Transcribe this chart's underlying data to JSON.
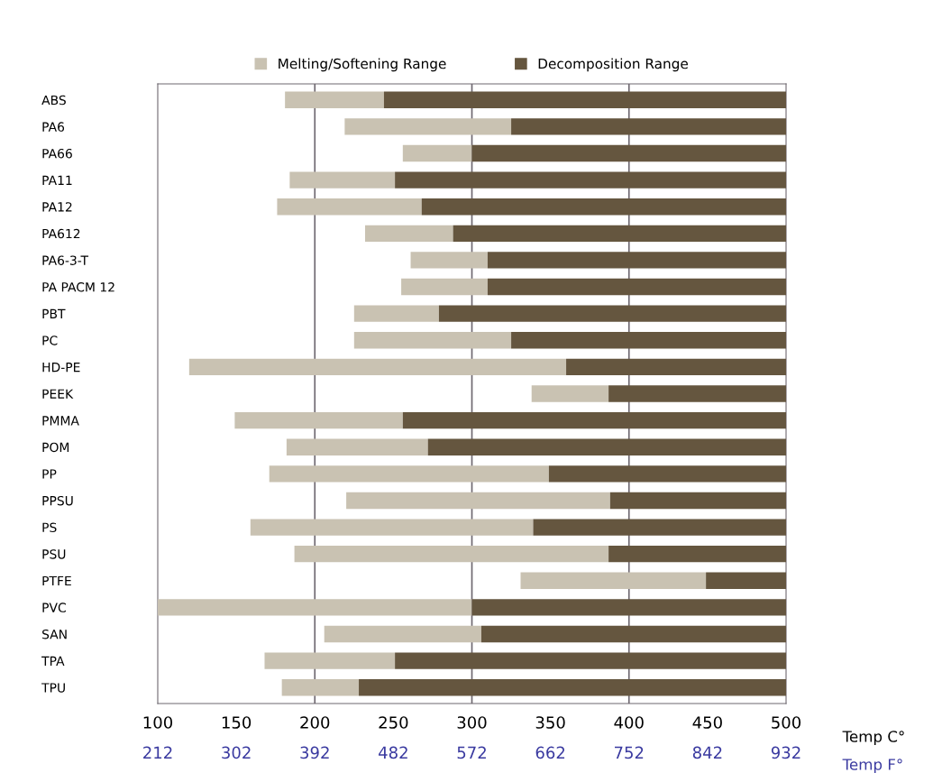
{
  "chart_data": {
    "type": "bar",
    "orientation": "horizontal",
    "categories": [
      "ABS",
      "PA6",
      "PA66",
      "PA11",
      "PA12",
      "PA612",
      "PA6-3-T",
      "PA PACM 12",
      "PBT",
      "PC",
      "HD-PE",
      "PEEK",
      "PMMA",
      "POM",
      "PP",
      "PPSU",
      "PS",
      "PSU",
      "PTFE",
      "PVC",
      "SAN",
      "TPA",
      "TPU"
    ],
    "series": [
      {
        "name": "Melting/Softening Range",
        "color": "#c9c2b2",
        "base": [
          181,
          219,
          256,
          184,
          176,
          232,
          261,
          255,
          225,
          225,
          120,
          338,
          149,
          182,
          171,
          220,
          159,
          187,
          331,
          100,
          206,
          168,
          179
        ],
        "values": [
          63,
          106,
          44,
          67,
          92,
          56,
          49,
          55,
          54,
          100,
          240,
          49,
          107,
          90,
          178,
          168,
          180,
          200,
          118,
          200,
          100,
          83,
          49
        ]
      },
      {
        "name": "Decomposition Range",
        "color": "#65563f",
        "base": [
          244,
          325,
          300,
          251,
          268,
          288,
          310,
          310,
          279,
          325,
          360,
          387,
          256,
          272,
          349,
          388,
          339,
          387,
          449,
          300,
          306,
          251,
          228
        ],
        "values": [
          256,
          175,
          200,
          249,
          232,
          212,
          190,
          190,
          221,
          175,
          140,
          113,
          244,
          228,
          151,
          112,
          161,
          113,
          51,
          200,
          194,
          249,
          272
        ]
      }
    ],
    "xlim": [
      100,
      500
    ],
    "xticks": [
      100,
      150,
      200,
      250,
      300,
      350,
      400,
      450,
      500
    ],
    "xlabel": "Temp C°",
    "x2lim": [
      212,
      932
    ],
    "x2ticks": [
      212,
      302,
      392,
      482,
      572,
      662,
      752,
      842,
      932
    ],
    "x2label": "Temp F°",
    "ref_lines": [
      {
        "axis": "x",
        "value": 200,
        "color": "#6e6870"
      },
      {
        "axis": "x",
        "value": 300,
        "color": "#6e6870"
      },
      {
        "axis": "x",
        "value": 400,
        "color": "#6e6870"
      }
    ],
    "legend": "top",
    "grid": false
  }
}
